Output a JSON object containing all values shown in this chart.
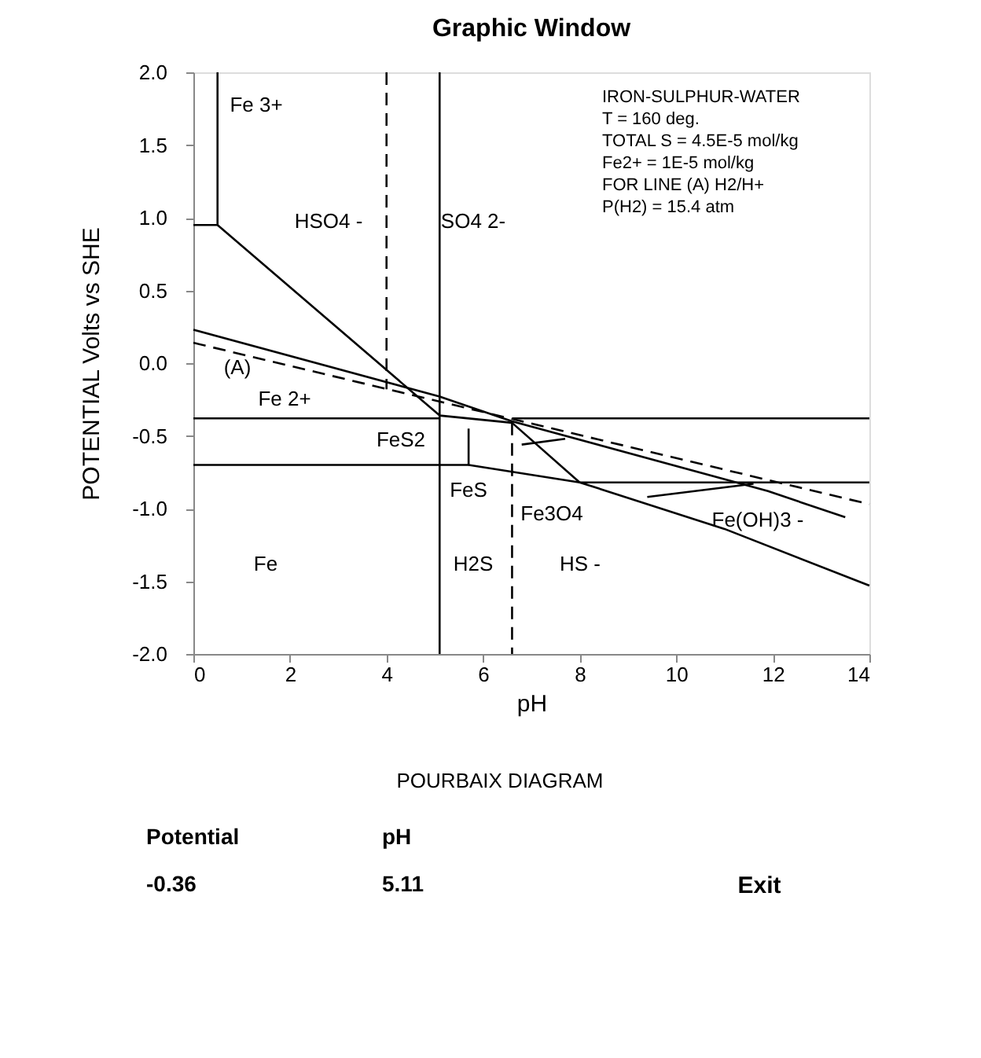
{
  "chart_data": {
    "type": "line",
    "title": "Graphic Window",
    "xlabel": "pH",
    "ylabel": "POTENTIAL Volts vs SHE",
    "xlim": [
      0,
      14
    ],
    "xticks": [
      0,
      2,
      4,
      6,
      8,
      10,
      12,
      14
    ],
    "ylim": [
      -2,
      2
    ],
    "yticks": [
      {
        "value": 2,
        "label": "2.0"
      },
      {
        "value": 1.5,
        "label": "1.5"
      },
      {
        "value": 1,
        "label": "1.0"
      },
      {
        "value": 0.5,
        "label": "0.5"
      },
      {
        "value": 0,
        "label": "0.0"
      },
      {
        "value": -0.5,
        "label": "-0.5"
      },
      {
        "value": -1,
        "label": "-1.0"
      },
      {
        "value": -1.5,
        "label": "-1.5"
      },
      {
        "value": -2,
        "label": "-2.0"
      }
    ],
    "grid": false,
    "marker": "none",
    "series": [
      {
        "color": "#000000",
        "line_style": "solid",
        "x": [
          0.5,
          0.5,
          0
        ],
        "values": [
          2,
          0.95,
          0.95
        ]
      },
      {
        "color": "#000000",
        "line_style": "solid",
        "x": [
          0.5,
          5.1,
          6.6,
          8.0,
          11.0,
          14
        ],
        "values": [
          0.95,
          -0.36,
          -0.41,
          -0.82,
          -1.14,
          -1.53
        ]
      },
      {
        "color": "#000000",
        "line_style": "solid",
        "x": [
          0,
          5.1,
          6.6,
          11.9,
          13.5
        ],
        "values": [
          0.23,
          -0.23,
          -0.4,
          -0.88,
          -1.06
        ]
      },
      {
        "color": "#000000",
        "line_style": "dashed",
        "x": [
          0,
          14
        ],
        "values": [
          0.14,
          -0.97
        ]
      },
      {
        "color": "#000000",
        "line_style": "solid",
        "x": [
          5.1,
          5.1
        ],
        "values": [
          2,
          -2
        ]
      },
      {
        "color": "#000000",
        "line_style": "dashed",
        "x": [
          4.0,
          4.0
        ],
        "values": [
          2,
          -0.18
        ]
      },
      {
        "color": "#000000",
        "line_style": "dashed",
        "x": [
          6.6,
          6.6
        ],
        "values": [
          -0.41,
          -2
        ]
      },
      {
        "color": "#000000",
        "line_style": "solid",
        "x": [
          0,
          5.1
        ],
        "values": [
          -0.38,
          -0.38
        ]
      },
      {
        "color": "#000000",
        "line_style": "solid",
        "x": [
          6.6,
          14
        ],
        "values": [
          -0.38,
          -0.38
        ]
      },
      {
        "color": "#000000",
        "line_style": "solid",
        "x": [
          0,
          5.7,
          5.7
        ],
        "values": [
          -0.7,
          -0.7,
          -0.45
        ]
      },
      {
        "color": "#000000",
        "line_style": "solid",
        "x": [
          5.7,
          8.0,
          14
        ],
        "values": [
          -0.7,
          -0.82,
          -0.82
        ]
      },
      {
        "color": "#000000",
        "line_style": "solid",
        "x": [
          9.4,
          11.6
        ],
        "values": [
          -0.92,
          -0.83
        ]
      },
      {
        "color": "#000000",
        "line_style": "solid",
        "x": [
          6.8,
          7.7
        ],
        "values": [
          -0.56,
          -0.52
        ]
      }
    ],
    "annotations": [
      "Fe 3+",
      "HSO4 -",
      "SO4 2-",
      "(A)",
      "Fe 2+",
      "FeS2",
      "FeS",
      "Fe3O4",
      "Fe(OH)3 -",
      "Fe",
      "H2S",
      "HS -",
      "IRON-SULPHUR-WATER",
      "T = 160 deg.",
      "TOTAL S = 4.5E-5 mol/kg",
      "Fe2+ = 1E-5 mol/kg",
      "FOR LINE (A) H2/H+",
      "P(H2) = 15.4 atm",
      "POURBAIX DIAGRAM",
      "Potential",
      "-0.36",
      "pH",
      "5.11",
      "Exit"
    ]
  }
}
